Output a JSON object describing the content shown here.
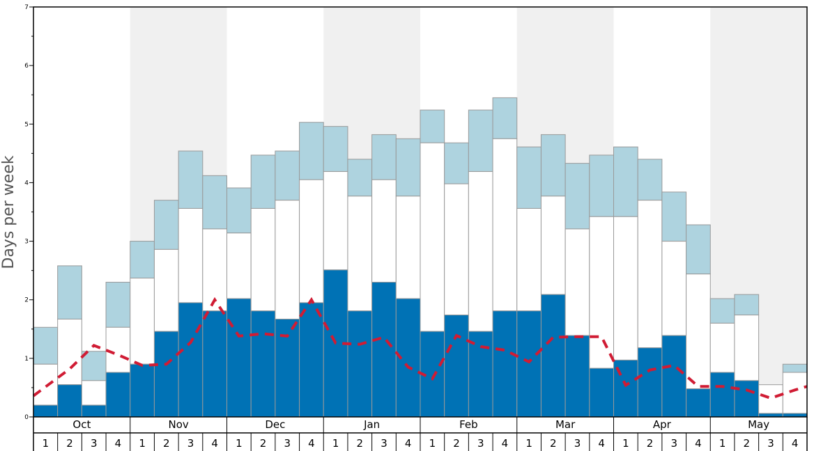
{
  "chart_data": {
    "type": "bar",
    "ylabel": "Days per week",
    "ylim": [
      0,
      7
    ],
    "y_ticks": [
      "0",
      "1",
      "2",
      "3",
      "4",
      "5",
      "6",
      "7"
    ],
    "months": [
      "Oct",
      "Nov",
      "Dec",
      "Jan",
      "Feb",
      "Mar",
      "Apr",
      "May"
    ],
    "weeks_per_month": [
      "1",
      "2",
      "3",
      "4"
    ],
    "colors": {
      "dark": "#0072b5",
      "light": "#aed3df",
      "middle": "#ffffff",
      "dashed_line": "#d01c34",
      "band": "#f0f0f0",
      "bar_edge": "#999999"
    },
    "series": [
      {
        "values": [
          0.2,
          0.55,
          0.2,
          0.76,
          0.9,
          1.46,
          1.95,
          1.81,
          2.02,
          1.81,
          1.67,
          1.95,
          2.51,
          1.81,
          2.3,
          2.02,
          1.46,
          1.74,
          1.46,
          1.81,
          1.81,
          2.09,
          1.39,
          0.83,
          0.97,
          1.18,
          1.39,
          0.48,
          0.76,
          0.62,
          0.06,
          0.06
        ]
      },
      {
        "values": [
          0.9,
          1.67,
          0.62,
          1.53,
          2.37,
          2.86,
          3.56,
          3.21,
          3.14,
          3.56,
          3.7,
          4.05,
          4.19,
          3.77,
          4.05,
          3.77,
          4.68,
          3.98,
          4.19,
          4.75,
          3.56,
          3.77,
          3.21,
          3.42,
          3.42,
          3.7,
          3.0,
          2.44,
          1.6,
          1.74,
          0.55,
          0.76
        ]
      },
      {
        "values": [
          1.53,
          2.58,
          1.12,
          2.3,
          3.0,
          3.7,
          4.54,
          4.12,
          3.91,
          4.47,
          4.54,
          5.03,
          4.96,
          4.4,
          4.82,
          4.75,
          5.24,
          4.68,
          5.24,
          5.45,
          4.61,
          4.82,
          4.33,
          4.47,
          4.61,
          4.4,
          3.84,
          3.28,
          2.02,
          2.09,
          0.55,
          0.9
        ]
      },
      {
        "values": [
          0.36,
          0.82,
          1.22,
          1.06,
          0.88,
          0.9,
          1.27,
          2.0,
          1.38,
          1.42,
          1.38,
          2.0,
          1.26,
          1.24,
          1.36,
          0.85,
          0.65,
          1.39,
          1.2,
          1.14,
          0.94,
          1.36,
          1.37,
          1.37,
          0.54,
          0.8,
          0.88,
          0.52,
          0.52,
          0.46,
          0.32,
          0.46
        ]
      }
    ]
  }
}
